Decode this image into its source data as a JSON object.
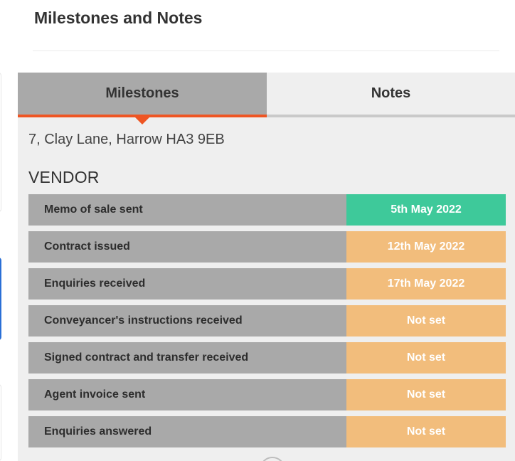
{
  "page": {
    "title": "Milestones and Notes"
  },
  "tabs": [
    {
      "label": "Milestones",
      "active": true
    },
    {
      "label": "Notes",
      "active": false
    }
  ],
  "property": {
    "address": "7, Clay Lane, Harrow HA3 9EB"
  },
  "vendor": {
    "heading": "VENDOR",
    "milestones": [
      {
        "label": "Memo of sale sent",
        "date": "5th May 2022",
        "status_color": "#3ec99a"
      },
      {
        "label": "Contract issued",
        "date": "12th May 2022",
        "status_color": "#f2bd7c"
      },
      {
        "label": "Enquiries received",
        "date": "17th May 2022",
        "status_color": "#f2bd7c"
      },
      {
        "label": "Conveyancer's instructions received",
        "date": "Not set",
        "status_color": "#f2bd7c"
      },
      {
        "label": "Signed contract and transfer received",
        "date": "Not set",
        "status_color": "#f2bd7c"
      },
      {
        "label": "Agent invoice sent",
        "date": "Not set",
        "status_color": "#f2bd7c"
      },
      {
        "label": "Enquiries answered",
        "date": "Not set",
        "status_color": "#f2bd7c"
      }
    ]
  },
  "colors": {
    "accent": "#ee5523",
    "tab_active_bg": "#a9a9a9",
    "panel_bg": "#efefef"
  }
}
